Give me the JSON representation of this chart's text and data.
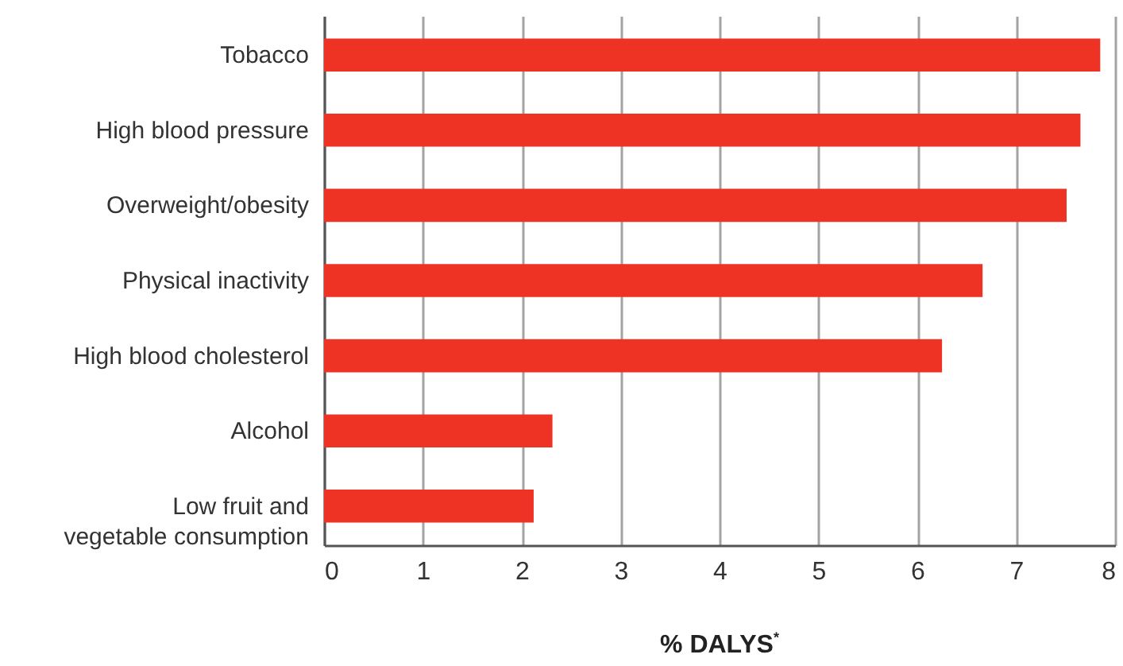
{
  "chart_data": {
    "type": "bar",
    "orientation": "horizontal",
    "categories": [
      "Tobacco",
      "High blood pressure",
      "Overweight/obesity",
      "Physical inactivity",
      "High blood cholesterol",
      "Alcohol",
      "Low fruit and vegetable consumption"
    ],
    "values": [
      7.85,
      7.65,
      7.51,
      6.66,
      6.25,
      2.31,
      2.12
    ],
    "color": "#ee3224",
    "xlim": [
      0,
      8
    ],
    "xticks": [
      0,
      1,
      2,
      3,
      4,
      5,
      6,
      7,
      8
    ],
    "xlabel": "% DALYS$^{*}$",
    "grid": "x"
  }
}
